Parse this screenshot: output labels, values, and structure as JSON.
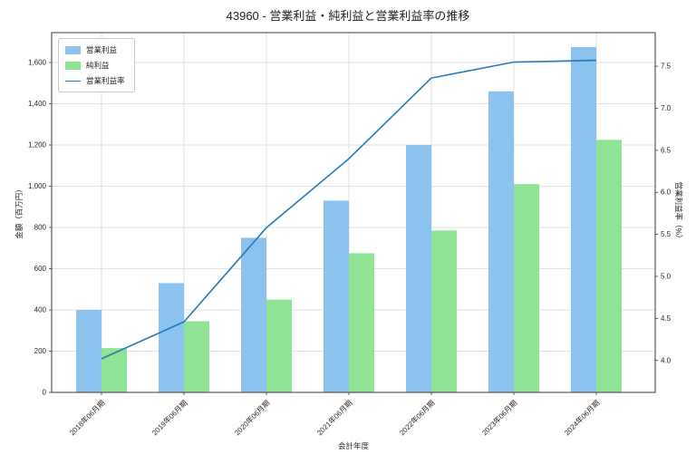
{
  "title": "43960 - 営業利益・純利益と営業利益率の推移",
  "chart_data": {
    "type": "bar",
    "subtype": "grouped-bars-with-line",
    "categories": [
      "2018年06月期",
      "2019年06月期",
      "2020年06月期",
      "2021年06月期",
      "2022年06月期",
      "2023年06月期",
      "2024年06月期"
    ],
    "series": [
      {
        "name": "営業利益",
        "type": "bar",
        "axis": "left",
        "color": "#8cc3ee",
        "values": [
          400,
          530,
          750,
          930,
          1200,
          1460,
          1675
        ]
      },
      {
        "name": "純利益",
        "type": "bar",
        "axis": "left",
        "color": "#90e394",
        "values": [
          215,
          345,
          450,
          675,
          785,
          1010,
          1225
        ]
      },
      {
        "name": "営業利益率",
        "type": "line",
        "axis": "right",
        "color": "#2679b8",
        "values": [
          4.02,
          4.46,
          5.58,
          6.4,
          7.36,
          7.55,
          7.57
        ]
      }
    ],
    "xlabel": "会計年度",
    "ylabel_left": "金額（百万円）",
    "ylabel_right": "営業利益率（%）",
    "left_ticks": [
      0,
      200,
      400,
      600,
      800,
      1000,
      1200,
      1400,
      1600
    ],
    "left_tick_labels": [
      "0",
      "200",
      "400",
      "600",
      "800",
      "1,000",
      "1,200",
      "1,400",
      "1,600"
    ],
    "right_ticks": [
      4.0,
      4.5,
      5.0,
      5.5,
      6.0,
      6.5,
      7.0,
      7.5
    ],
    "right_tick_labels": [
      "4.0",
      "4.5",
      "5.0",
      "5.5",
      "6.0",
      "6.5",
      "7.0",
      "7.5"
    ],
    "ylim_left": [
      0,
      1745
    ],
    "ylim_right": [
      3.62,
      7.9
    ],
    "grid": true,
    "legend_position": "upper-left"
  }
}
